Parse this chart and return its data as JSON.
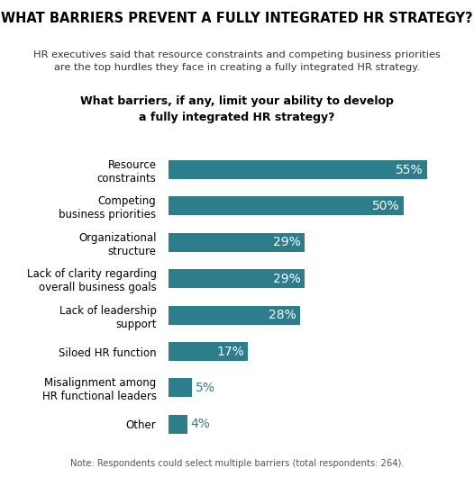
{
  "title": "WHAT BARRIERS PREVENT A FULLY INTEGRATED HR STRATEGY?",
  "subtitle": "HR executives said that resource constraints and competing business priorities\nare the top hurdles they face in creating a fully integrated HR strategy.",
  "question": "What barriers, if any, limit your ability to develop\na fully integrated HR strategy?",
  "categories": [
    "Resource\nconstraints",
    "Competing\nbusiness priorities",
    "Organizational\nstructure",
    "Lack of clarity regarding\noverall business goals",
    "Lack of leadership\nsupport",
    "Siloed HR function",
    "Misalignment among\nHR functional leaders",
    "Other"
  ],
  "values": [
    55,
    50,
    29,
    29,
    28,
    17,
    5,
    4
  ],
  "bar_color": "#2e7d8c",
  "label_color_inside": "#ffffff",
  "label_color_outside": "#2e7d8c",
  "title_color": "#000000",
  "subtitle_color": "#333333",
  "note": "Note: Respondents could select multiple barriers (total respondents: 264).",
  "background_color": "#ffffff",
  "xlim": [
    0,
    62
  ],
  "inside_threshold": 17
}
